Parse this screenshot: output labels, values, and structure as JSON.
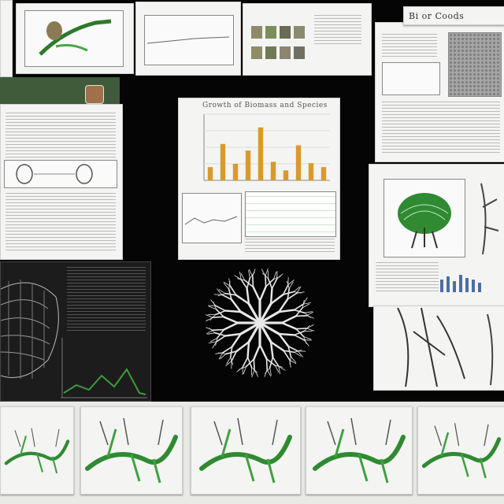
{
  "collage": {
    "top_right_caption": "Bi or Coods",
    "chart_title": "Growth of Biomass and Species",
    "bottom_row_count": 5
  },
  "chart_data": {
    "type": "bar",
    "categories": [
      "1",
      "2",
      "3",
      "4",
      "5",
      "6",
      "7",
      "8",
      "9",
      "10"
    ],
    "values": [
      2,
      5.5,
      2.5,
      4.5,
      8,
      2.8,
      1.5,
      5.3,
      2.6,
      2
    ],
    "ylim": [
      0,
      10
    ],
    "colors": {
      "bar": "#d99a2b"
    }
  },
  "palette": {
    "background": "#050505",
    "paper": "#f4f4f2",
    "green": "#3f8f3a",
    "branch": "#e8e8e8"
  }
}
